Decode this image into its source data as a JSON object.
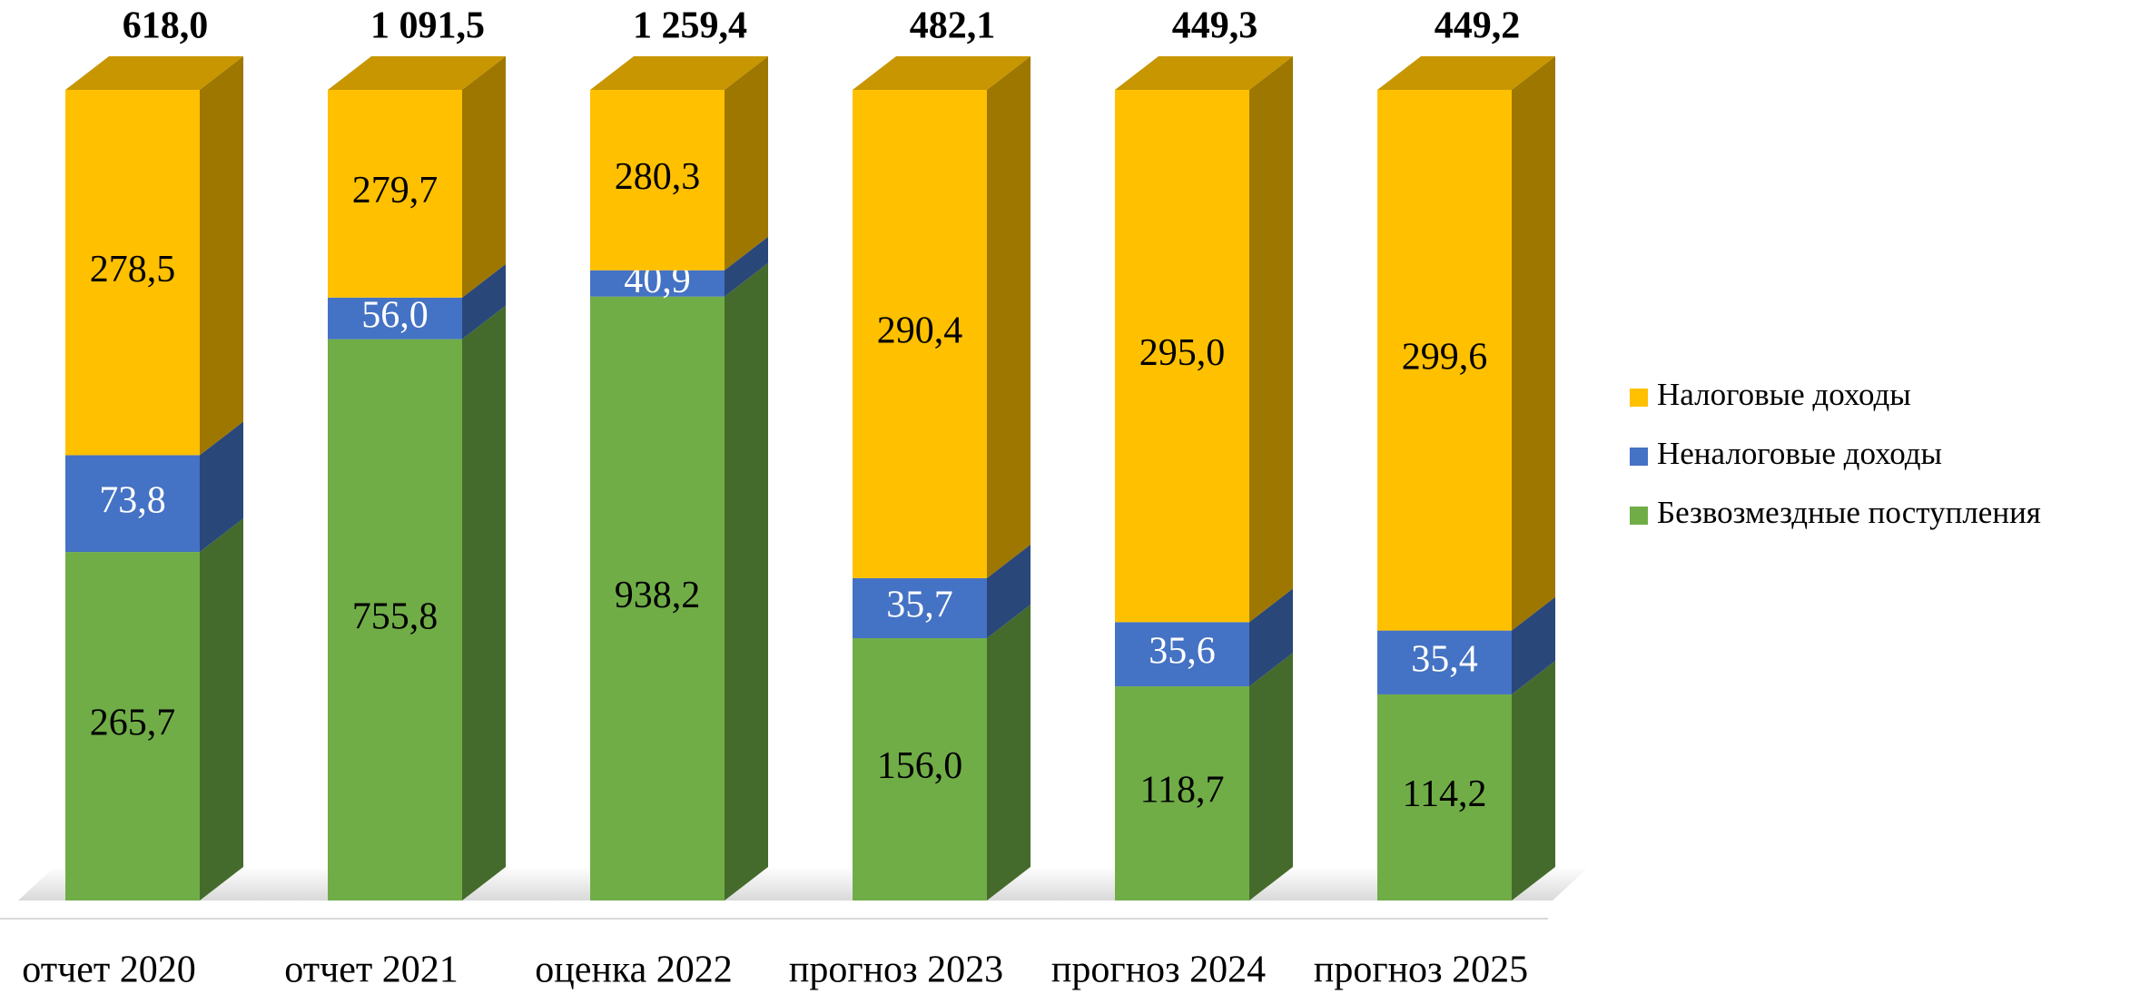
{
  "chart_data": {
    "type": "bar",
    "stacking": "percent",
    "categories": [
      "отчет 2020",
      "отчет 2021",
      "оценка 2022",
      "прогноз 2023",
      "прогноз 2024",
      "прогноз 2025"
    ],
    "totals": [
      618.0,
      1091.5,
      1259.4,
      482.1,
      449.3,
      449.2
    ],
    "total_labels": [
      "618,0",
      "1 091,5",
      "1 259,4",
      "482,1",
      "449,3",
      "449,2"
    ],
    "series": [
      {
        "name": "Безвозмездные поступления",
        "color": "#70AD47",
        "label_color": "#000000",
        "values": [
          265.7,
          755.8,
          938.2,
          156.0,
          118.7,
          114.2
        ],
        "value_labels": [
          "265,7",
          "755,8",
          "938,2",
          "156,0",
          "118,7",
          "114,2"
        ]
      },
      {
        "name": "Неналоговые доходы",
        "color": "#4472C4",
        "label_color": "#ffffff",
        "values": [
          73.8,
          56.0,
          40.9,
          35.7,
          35.6,
          35.4
        ],
        "value_labels": [
          "73,8",
          "56,0",
          "40,9",
          "35,7",
          "35,6",
          "35,4"
        ]
      },
      {
        "name": "Налоговые доходы",
        "color": "#FFC000",
        "label_color": "#000000",
        "values": [
          278.5,
          279.7,
          280.3,
          290.4,
          295.0,
          299.6
        ],
        "value_labels": [
          "278,5",
          "279,7",
          "280,3",
          "290,4",
          "295,0",
          "299,6"
        ]
      }
    ],
    "legend": "right"
  }
}
